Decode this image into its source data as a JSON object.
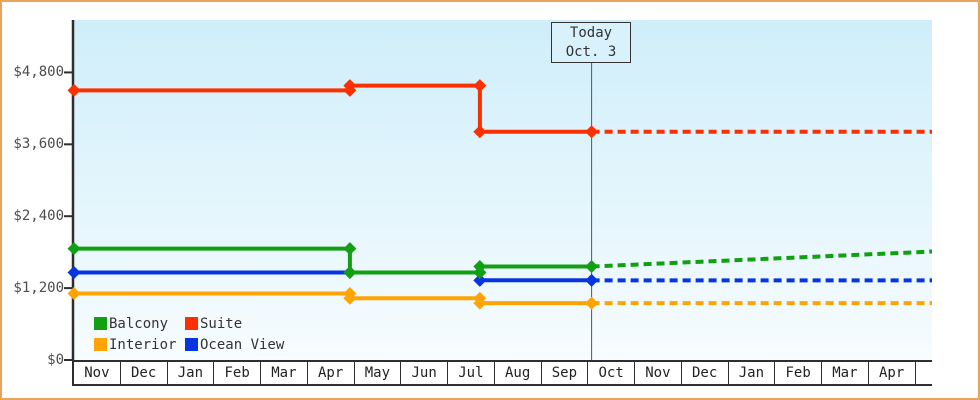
{
  "window": {
    "frame_border_color": "#E9A45C",
    "background_color": "#FFFFFF"
  },
  "today_marker": {
    "line1": "Today",
    "line2": "Oct. 3"
  },
  "chart_data": {
    "type": "line",
    "subtype": "step-price-history-with-forecast",
    "title": "",
    "xlabel": "",
    "ylabel": "",
    "grid": false,
    "plot_bg_gradient": [
      "#CFEEFA",
      "#F7FCFF"
    ],
    "axis_color": "#2E2E2E",
    "today_line_color": "#555555",
    "x_months": [
      "Nov",
      "Dec",
      "Jan",
      "Feb",
      "Mar",
      "Apr",
      "May",
      "Jun",
      "Jul",
      "Aug",
      "Sep",
      "Oct",
      "Nov",
      "Dec",
      "Jan",
      "Feb",
      "Mar",
      "Apr"
    ],
    "xlim_months": [
      0,
      18.35
    ],
    "today_x_months": 11.07,
    "yticks": [
      0,
      1200,
      2400,
      3600,
      4800
    ],
    "ytick_labels": [
      "$0",
      "$1,200",
      "$2,400",
      "$3,600",
      "$4,800"
    ],
    "ylim": [
      0,
      5675
    ],
    "series": [
      {
        "name": "Balcony",
        "color": "#11A011",
        "points": [
          [
            0,
            1860
          ],
          [
            5.9,
            1860
          ],
          [
            5.9,
            1460
          ],
          [
            8.68,
            1460
          ],
          [
            8.68,
            1560
          ],
          [
            11.07,
            1560
          ]
        ],
        "forecast_end": [
          18.35,
          1810
        ]
      },
      {
        "name": "Suite",
        "color": "#FA3000",
        "points": [
          [
            0,
            4500
          ],
          [
            5.9,
            4500
          ],
          [
            5.9,
            4580
          ],
          [
            8.68,
            4580
          ],
          [
            8.68,
            3810
          ],
          [
            11.07,
            3810
          ]
        ],
        "forecast_end": [
          18.35,
          3810
        ]
      },
      {
        "name": "Interior",
        "color": "#FFA404",
        "points": [
          [
            0,
            1110
          ],
          [
            5.9,
            1110
          ],
          [
            5.9,
            1030
          ],
          [
            8.68,
            1030
          ],
          [
            8.68,
            950
          ],
          [
            11.07,
            950
          ]
        ],
        "forecast_end": [
          18.35,
          950
        ]
      },
      {
        "name": "Ocean View",
        "color": "#0634E0",
        "points": [
          [
            0,
            1460
          ],
          [
            5.9,
            1460
          ],
          [
            8.68,
            1460
          ],
          [
            8.68,
            1330
          ],
          [
            11.07,
            1330
          ]
        ],
        "forecast_end": [
          18.35,
          1330
        ]
      }
    ],
    "draw_order": [
      "Suite",
      "Interior",
      "Ocean View",
      "Balcony"
    ],
    "legend": {
      "position": "bottom-left-inside",
      "order": [
        "Balcony",
        "Suite",
        "Interior",
        "Ocean View"
      ]
    }
  }
}
